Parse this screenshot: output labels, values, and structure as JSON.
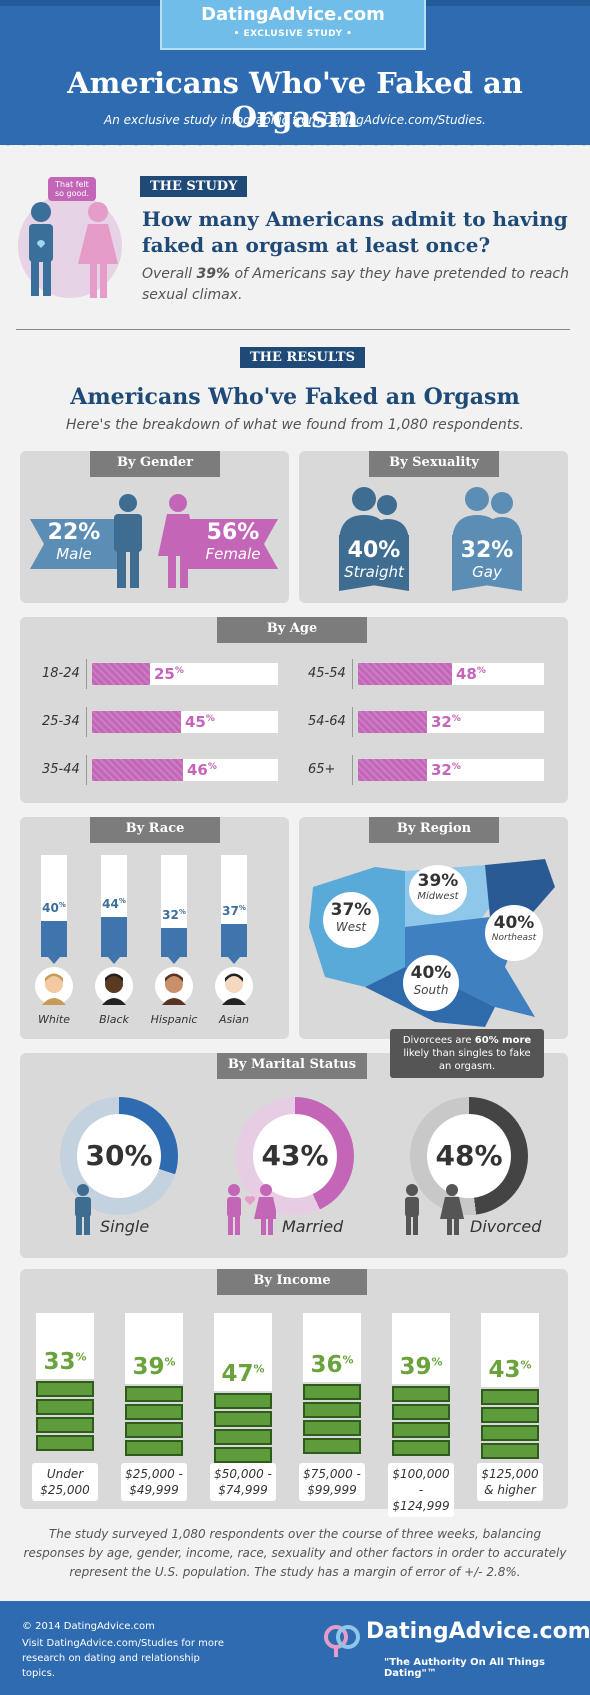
{
  "header": {
    "logo": "DatingAdvice.com",
    "badge": "• EXCLUSIVE STUDY •",
    "title": "Americans Who've Faked an Orgasm",
    "subtitle": "An exclusive study infographic from DatingAdvice.com/Studies."
  },
  "study": {
    "tag": "THE STUDY",
    "bubble": "That felt so good.",
    "question": "How many Americans admit to having faked an orgasm at least once?",
    "summary_pre": "Overall ",
    "summary_pct": "39%",
    "summary_post": " of Americans say they have pretended to reach sexual climax."
  },
  "results": {
    "tag": "THE RESULTS",
    "title": "Americans Who've Faked an Orgasm",
    "subtitle": "Here's the breakdown of what we found from 1,080 respondents."
  },
  "gender": {
    "tab": "By Gender",
    "male_value": "22%",
    "male_label": "Male",
    "female_value": "56%",
    "female_label": "Female"
  },
  "sexuality": {
    "tab": "By Sexuality",
    "straight_value": "40%",
    "straight_label": "Straight",
    "gay_value": "32%",
    "gay_label": "Gay"
  },
  "age": {
    "tab": "By Age",
    "rows": [
      {
        "label": "18-24",
        "value": "25",
        "pct": 0.25
      },
      {
        "label": "25-34",
        "value": "45",
        "pct": 0.45
      },
      {
        "label": "35-44",
        "value": "46",
        "pct": 0.46
      },
      {
        "label": "45-54",
        "value": "48",
        "pct": 0.48
      },
      {
        "label": "54-64",
        "value": "32",
        "pct": 0.32
      },
      {
        "label": "65+",
        "value": "32",
        "pct": 0.32
      }
    ],
    "pct_sign": "%"
  },
  "race": {
    "tab": "By Race",
    "items": [
      {
        "label": "White",
        "value": "40",
        "pct": 0.4
      },
      {
        "label": "Black",
        "value": "44",
        "pct": 0.44
      },
      {
        "label": "Hispanic",
        "value": "32",
        "pct": 0.32
      },
      {
        "label": "Asian",
        "value": "37",
        "pct": 0.37
      }
    ]
  },
  "region": {
    "tab": "By Region",
    "west_value": "37%",
    "west": "West",
    "midwest_value": "39%",
    "midwest": "Midwest",
    "northeast_value": "40%",
    "northeast": "Northeast",
    "south_value": "40%",
    "south": "South"
  },
  "marital": {
    "tab": "By Marital Status",
    "callout": "Divorcees are 60% more likely than singles to fake an orgasm.",
    "callout_pre": "Divorcees are ",
    "callout_bold": "60% more",
    "callout_post": " likely than singles to fake an orgasm.",
    "single_value": "30%",
    "single": "Single",
    "married_value": "43%",
    "married": "Married",
    "divorced_value": "48%",
    "divorced": "Divorced",
    "single_pct": 0.3,
    "married_pct": 0.43,
    "divorced_pct": 0.48
  },
  "income": {
    "tab": "By Income",
    "items": [
      {
        "value": "33",
        "pct": 0.33,
        "label": "Under $25,000"
      },
      {
        "value": "39",
        "pct": 0.39,
        "label": "$25,000 - $49,999"
      },
      {
        "value": "47",
        "pct": 0.47,
        "label": "$50,000 - $74,999"
      },
      {
        "value": "36",
        "pct": 0.36,
        "label": "$75,000 - $99,999"
      },
      {
        "value": "39",
        "pct": 0.39,
        "label": "$100,000 - $124,999"
      },
      {
        "value": "43",
        "pct": 0.43,
        "label": "$125,000 & higher"
      }
    ]
  },
  "note": "The study surveyed 1,080 respondents over the course of three weeks, balancing responses by age, gender, income, race, sexuality and other factors in order to accurately represent the U.S. population. The study has a margin of error of +/- 2.8%.",
  "footer": {
    "copyright": "© 2014 DatingAdvice.com",
    "visit": "Visit DatingAdvice.com/Studies for more research on dating and relationship topics.",
    "logo": "DatingAdvice.com",
    "tagline": "\"The Authority On All Things Dating\"™"
  },
  "colors": {
    "blue": "#2e6bb0",
    "navy": "#1f4a77",
    "pink": "#c466b8",
    "green": "#6aa33c"
  }
}
